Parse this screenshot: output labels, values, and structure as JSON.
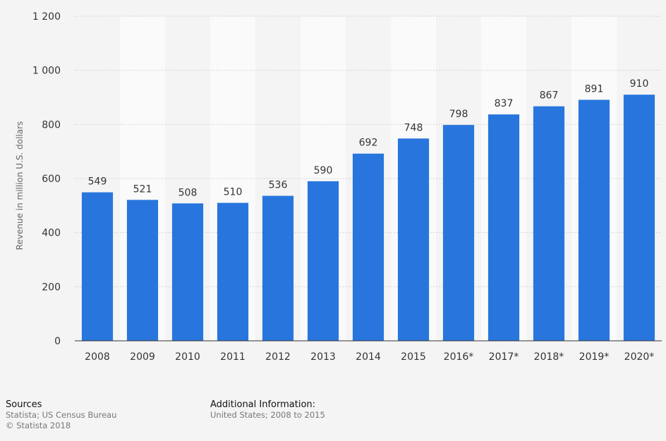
{
  "chart_data": {
    "type": "bar",
    "categories": [
      "2008",
      "2009",
      "2010",
      "2011",
      "2012",
      "2013",
      "2014",
      "2015",
      "2016*",
      "2017*",
      "2018*",
      "2019*",
      "2020*"
    ],
    "values": [
      549,
      521,
      508,
      510,
      536,
      590,
      692,
      748,
      798,
      837,
      867,
      891,
      910
    ],
    "data_labels": [
      "549",
      "521",
      "508",
      "510",
      "536",
      "590",
      "692",
      "748",
      "798",
      "837",
      "867",
      "891",
      "910"
    ],
    "title": "",
    "xlabel": "",
    "ylabel": "Revenue in million U.S. dollars",
    "ylim": [
      0,
      1200
    ],
    "yticks": [
      0,
      200,
      400,
      600,
      800,
      1000,
      1200
    ],
    "ytick_labels": [
      "0",
      "200",
      "400",
      "600",
      "800",
      "1 000",
      "1 200"
    ],
    "grid": true,
    "bar_color": "#2876dd"
  },
  "footer": {
    "sources_heading": "Sources",
    "sources_line1": "Statista; US Census Bureau",
    "sources_line2": "© Statista 2018",
    "additional_heading": "Additional Information:",
    "additional_line1": "United States; 2008 to 2015"
  }
}
